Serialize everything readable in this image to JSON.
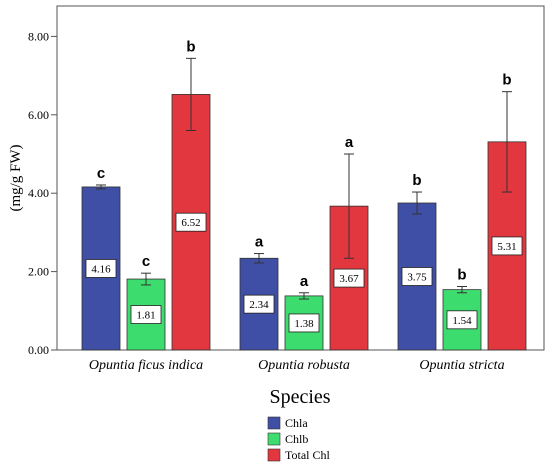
{
  "chart_data": {
    "type": "bar",
    "ylabel": "(mg/g FW)",
    "xlabel": "Species",
    "ylim": [
      0,
      8.5
    ],
    "yticks": [
      0,
      2,
      4,
      6,
      8
    ],
    "ytick_labels": [
      "0.00",
      "2.00",
      "4.00",
      "6.00",
      "8.00"
    ],
    "grid": false,
    "legend_position": "bottom-center",
    "categories": [
      "Opuntia ficus indica",
      "Opuntia robusta",
      "Opuntia stricta"
    ],
    "series": [
      {
        "name": "Chla",
        "color": "#3f4fa6",
        "values": [
          4.16,
          2.34,
          3.75
        ],
        "value_labels": [
          "4.16",
          "2.34",
          "3.75"
        ],
        "error": [
          0.05,
          0.12,
          0.28
        ],
        "letters": [
          "c",
          "a",
          "b"
        ]
      },
      {
        "name": "Chlb",
        "color": "#3ddc6e",
        "values": [
          1.81,
          1.38,
          1.54
        ],
        "value_labels": [
          "1.81",
          "1.38",
          "1.54"
        ],
        "error": [
          0.15,
          0.08,
          0.08
        ],
        "letters": [
          "c",
          "a",
          "b"
        ]
      },
      {
        "name": "Total Chl",
        "color": "#e2373f",
        "values": [
          6.52,
          3.67,
          5.31
        ],
        "value_labels": [
          "6.52",
          "3.67",
          "5.31"
        ],
        "error": [
          0.92,
          1.33,
          1.28
        ],
        "letters": [
          "b",
          "a",
          "b"
        ]
      }
    ]
  }
}
